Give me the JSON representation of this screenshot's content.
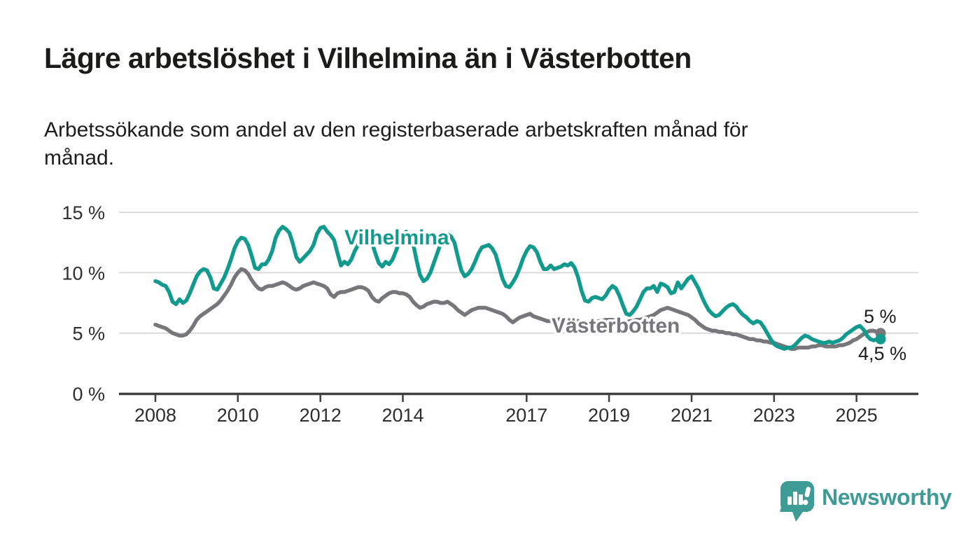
{
  "chart_data": {
    "type": "line",
    "title": "Lägre arbetslöshet i Vilhelmina än i Västerbotten",
    "subtitle": "Arbetssökande som andel av den registerbaserade arbetskraften månad för månad.",
    "subtitle_lines": [
      "Arbetssökande som andel av den registerbaserade arbetskraften månad för",
      "månad."
    ],
    "x": {
      "start": "2008-01",
      "end": "2025-08",
      "interval": "monthly",
      "tick_years": [
        2008,
        2010,
        2012,
        2014,
        2017,
        2019,
        2021,
        2023,
        2025
      ]
    },
    "y": {
      "unit": "%",
      "range": [
        0,
        15.5
      ],
      "ticks": [
        {
          "value": 0,
          "label": "0 %"
        },
        {
          "value": 5,
          "label": "5 %"
        },
        {
          "value": 10,
          "label": "10 %"
        },
        {
          "value": 15,
          "label": "15 %"
        }
      ]
    },
    "grid": "horizontal",
    "legend_position": "inline-labels",
    "colors": {
      "accent_teal": "#139a8f",
      "series_gray": "#77777b",
      "gridline": "#dadada",
      "axis": "#3f3f3f",
      "text_dark": "#1d1d1d"
    },
    "series": [
      {
        "name": "Vilhelmina",
        "color": "#139a8f",
        "end_label": "4,5 %",
        "values": [
          9.3,
          9.2,
          9.0,
          8.9,
          8.4,
          7.6,
          7.4,
          7.8,
          7.5,
          7.7,
          8.3,
          9.0,
          9.7,
          10.1,
          10.3,
          10.2,
          9.6,
          8.7,
          8.6,
          9.1,
          9.6,
          10.3,
          11.1,
          12.0,
          12.6,
          12.9,
          12.8,
          12.3,
          11.4,
          10.4,
          10.3,
          10.7,
          10.7,
          11.1,
          11.8,
          12.9,
          13.5,
          13.8,
          13.6,
          13.3,
          12.4,
          11.3,
          10.9,
          11.2,
          11.5,
          11.8,
          12.3,
          13.2,
          13.7,
          13.8,
          13.4,
          13.1,
          12.7,
          11.6,
          10.6,
          10.9,
          10.7,
          11.1,
          11.8,
          12.3,
          12.9,
          13.2,
          13.0,
          12.5,
          11.6,
          10.8,
          10.5,
          10.9,
          10.7,
          11.1,
          11.8,
          12.6,
          13.1,
          13.4,
          13.1,
          12.4,
          11.0,
          9.8,
          9.3,
          9.5,
          10.0,
          10.8,
          11.6,
          12.4,
          12.9,
          13.2,
          13.0,
          12.5,
          11.3,
          10.2,
          9.7,
          9.9,
          10.3,
          10.9,
          11.6,
          12.1,
          12.2,
          12.3,
          12.0,
          11.5,
          10.5,
          9.5,
          8.9,
          8.8,
          9.2,
          9.7,
          10.4,
          11.2,
          11.8,
          12.2,
          12.1,
          11.7,
          10.9,
          10.3,
          10.3,
          10.6,
          10.3,
          10.4,
          10.5,
          10.7,
          10.6,
          10.8,
          10.4,
          9.6,
          8.5,
          7.7,
          7.6,
          7.9,
          8.0,
          7.9,
          7.8,
          8.1,
          8.6,
          8.9,
          8.7,
          8.1,
          7.3,
          6.6,
          6.5,
          6.8,
          7.2,
          7.8,
          8.4,
          8.7,
          8.7,
          8.9,
          8.4,
          9.1,
          9.0,
          8.8,
          8.3,
          8.4,
          9.2,
          8.7,
          9.1,
          9.5,
          9.7,
          9.2,
          8.7,
          8.0,
          7.4,
          6.9,
          6.6,
          6.4,
          6.5,
          6.8,
          7.1,
          7.3,
          7.4,
          7.2,
          6.8,
          6.5,
          6.3,
          6.0,
          5.8,
          6.0,
          5.9,
          5.5,
          5.0,
          4.5,
          4.1,
          3.9,
          3.8,
          3.7,
          3.8,
          3.8,
          4.0,
          4.3,
          4.6,
          4.8,
          4.7,
          4.5,
          4.4,
          4.3,
          4.2,
          4.2,
          4.3,
          4.2,
          4.3,
          4.4,
          4.6,
          4.9,
          5.1,
          5.3,
          5.5,
          5.6,
          5.3,
          4.8,
          4.5,
          4.4,
          4.5,
          4.5
        ]
      },
      {
        "name": "Västerbotten",
        "color": "#77777b",
        "end_label": "5 %",
        "values": [
          5.7,
          5.6,
          5.5,
          5.4,
          5.2,
          5.0,
          4.9,
          4.8,
          4.8,
          4.9,
          5.2,
          5.6,
          6.1,
          6.4,
          6.6,
          6.8,
          7.0,
          7.2,
          7.4,
          7.7,
          8.1,
          8.5,
          9.0,
          9.6,
          10.0,
          10.3,
          10.2,
          9.9,
          9.4,
          9.0,
          8.7,
          8.6,
          8.8,
          8.9,
          8.9,
          9.0,
          9.1,
          9.2,
          9.1,
          8.9,
          8.7,
          8.6,
          8.7,
          8.9,
          9.0,
          9.1,
          9.2,
          9.1,
          9.0,
          8.9,
          8.7,
          8.2,
          8.0,
          8.3,
          8.4,
          8.4,
          8.5,
          8.6,
          8.7,
          8.8,
          8.8,
          8.7,
          8.5,
          8.0,
          7.7,
          7.6,
          7.9,
          8.1,
          8.3,
          8.4,
          8.4,
          8.3,
          8.3,
          8.2,
          8.0,
          7.6,
          7.3,
          7.1,
          7.2,
          7.4,
          7.5,
          7.6,
          7.6,
          7.5,
          7.5,
          7.6,
          7.4,
          7.2,
          6.9,
          6.7,
          6.5,
          6.7,
          6.9,
          7.0,
          7.1,
          7.1,
          7.1,
          7.0,
          6.9,
          6.8,
          6.7,
          6.6,
          6.4,
          6.1,
          5.9,
          6.1,
          6.3,
          6.4,
          6.5,
          6.6,
          6.4,
          6.3,
          6.2,
          6.1,
          6.0,
          6.0,
          6.1,
          6.1,
          6.2,
          6.2,
          6.2,
          6.2,
          6.1,
          6.0,
          5.9,
          5.8,
          5.8,
          5.9,
          5.9,
          6.0,
          6.0,
          6.1,
          6.1,
          6.1,
          6.0,
          6.0,
          5.9,
          5.9,
          6.0,
          6.0,
          6.1,
          6.1,
          6.2,
          6.3,
          6.4,
          6.5,
          6.7,
          6.9,
          7.0,
          7.1,
          7.0,
          6.9,
          6.8,
          6.7,
          6.6,
          6.5,
          6.3,
          6.1,
          5.8,
          5.6,
          5.4,
          5.3,
          5.2,
          5.2,
          5.1,
          5.1,
          5.0,
          5.0,
          4.9,
          4.9,
          4.8,
          4.7,
          4.6,
          4.5,
          4.5,
          4.4,
          4.4,
          4.3,
          4.3,
          4.2,
          4.2,
          4.1,
          4.0,
          3.9,
          3.8,
          3.7,
          3.7,
          3.8,
          3.8,
          3.8,
          3.8,
          3.9,
          3.9,
          4.0,
          4.0,
          3.9,
          3.9,
          3.9,
          3.9,
          4.0,
          4.0,
          4.1,
          4.2,
          4.4,
          4.5,
          4.7,
          4.9,
          5.1,
          5.2,
          5.2,
          5.1,
          5.0
        ]
      }
    ]
  },
  "footer": {
    "brand": "Newsworthy"
  }
}
